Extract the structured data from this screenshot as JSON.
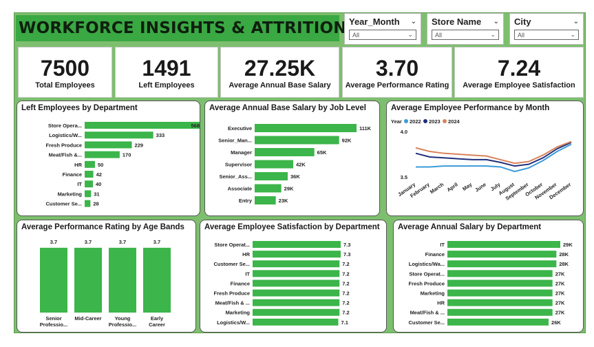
{
  "title": "WORKFORCE INSIGHTS & ATTRITION",
  "slicers": [
    {
      "label": "Year_Month",
      "value": "All"
    },
    {
      "label": "Store Name",
      "value": "All"
    },
    {
      "label": "City",
      "value": "All"
    }
  ],
  "kpis": [
    {
      "value": "7500",
      "label": "Total Employees"
    },
    {
      "value": "1491",
      "label": "Left Employees"
    },
    {
      "value": "27.25K",
      "label": "Average Annual Base Salary"
    },
    {
      "value": "3.70",
      "label": "Average Performance Rating"
    },
    {
      "value": "7.24",
      "label": "Average Employee Satisfaction"
    }
  ],
  "colors": {
    "bar": "#3cb54a",
    "y2022": "#3a9ad9",
    "y2023": "#1f2f7a",
    "y2024": "#d9825a"
  },
  "chart_data": [
    {
      "id": "left-by-dept",
      "type": "bar",
      "orientation": "horizontal",
      "title": "Left Employees by Department",
      "categories": [
        "Store Opera...",
        "Logistics/W...",
        "Fresh Produce",
        "Meat/Fish &...",
        "HR",
        "Finance",
        "IT",
        "Marketing",
        "Customer Se..."
      ],
      "values": [
        568,
        333,
        229,
        170,
        50,
        42,
        40,
        31,
        28
      ],
      "labels": [
        "568",
        "333",
        "229",
        "170",
        "50",
        "42",
        "40",
        "31",
        "28"
      ]
    },
    {
      "id": "salary-by-level",
      "type": "bar",
      "orientation": "horizontal",
      "title": "Average Annual Base Salary by Job Level",
      "categories": [
        "Executive",
        "Senior_Man...",
        "Manager",
        "Supervisor",
        "Senior_Ass...",
        "Associate",
        "Entry"
      ],
      "values": [
        111,
        92,
        65,
        42,
        36,
        29,
        23
      ],
      "labels": [
        "111K",
        "92K",
        "65K",
        "42K",
        "36K",
        "29K",
        "23K"
      ]
    },
    {
      "id": "perf-by-month",
      "type": "line",
      "title": "Average Employee Performance by Month",
      "legend_title": "Year",
      "categories": [
        "January",
        "February",
        "March",
        "April",
        "May",
        "June",
        "July",
        "August",
        "September",
        "October",
        "November",
        "December"
      ],
      "ylim": [
        3.5,
        4.0
      ],
      "yticks": [
        "4.0",
        "3.5"
      ],
      "series": [
        {
          "name": "2022",
          "values": [
            3.61,
            3.61,
            3.62,
            3.62,
            3.62,
            3.62,
            3.61,
            3.56,
            3.6,
            3.68,
            3.78,
            3.86
          ]
        },
        {
          "name": "2023",
          "values": [
            3.76,
            3.72,
            3.71,
            3.7,
            3.69,
            3.69,
            3.66,
            3.62,
            3.64,
            3.71,
            3.81,
            3.88
          ]
        },
        {
          "name": "2024",
          "values": [
            3.82,
            3.78,
            3.76,
            3.75,
            3.74,
            3.73,
            3.69,
            3.65,
            3.67,
            3.74,
            3.83,
            3.89
          ]
        }
      ]
    },
    {
      "id": "perf-by-age",
      "type": "bar",
      "orientation": "vertical",
      "title": "Average Performance Rating by Age Bands",
      "categories": [
        [
          "Senior",
          "Professio..."
        ],
        [
          "Mid-Career"
        ],
        [
          "Young",
          "Professio..."
        ],
        [
          "Early",
          "Career"
        ]
      ],
      "values": [
        3.7,
        3.7,
        3.7,
        3.7
      ],
      "labels": [
        "3.7",
        "3.7",
        "3.7",
        "3.7"
      ]
    },
    {
      "id": "satisfaction-by-dept",
      "type": "bar",
      "orientation": "horizontal",
      "title": "Average Employee Satisfaction by Department",
      "categories": [
        "Store Operat...",
        "HR",
        "Customer Se...",
        "IT",
        "Finance",
        "Fresh Produce",
        "Meat/Fish & ...",
        "Marketing",
        "Logistics/W..."
      ],
      "values": [
        7.3,
        7.3,
        7.2,
        7.2,
        7.2,
        7.2,
        7.2,
        7.2,
        7.1
      ],
      "labels": [
        "7.3",
        "7.3",
        "7.2",
        "7.2",
        "7.2",
        "7.2",
        "7.2",
        "7.2",
        "7.1"
      ]
    },
    {
      "id": "salary-by-dept",
      "type": "bar",
      "orientation": "horizontal",
      "title": "Average Annual Salary by Department",
      "categories": [
        "IT",
        "Finance",
        "Logistics/Wa...",
        "Store Operat...",
        "Fresh Produce",
        "Marketing",
        "HR",
        "Meat/Fish & ...",
        "Customer Se..."
      ],
      "values": [
        29,
        28,
        28,
        27,
        27,
        27,
        27,
        27,
        26
      ],
      "labels": [
        "29K",
        "28K",
        "28K",
        "27K",
        "27K",
        "27K",
        "27K",
        "27K",
        "26K"
      ]
    }
  ]
}
